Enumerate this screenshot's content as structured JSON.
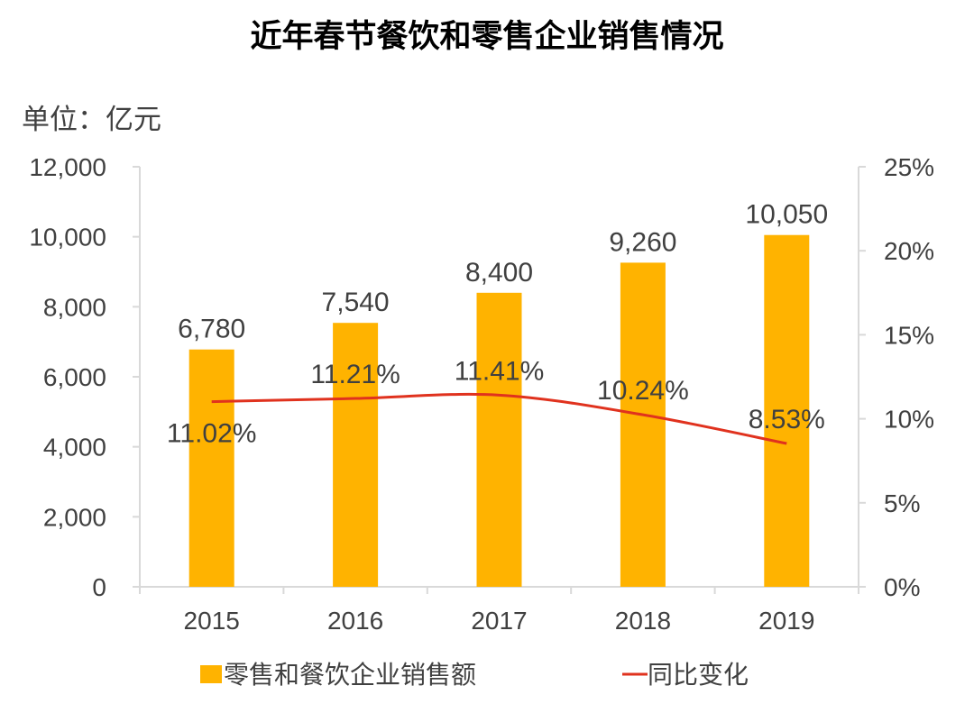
{
  "chart_data": {
    "type": "bar",
    "title": "近年春节餐饮和零售企业销售情况",
    "unit_label": "单位：亿元",
    "categories": [
      "2015",
      "2016",
      "2017",
      "2018",
      "2019"
    ],
    "series": [
      {
        "name": "零售和餐饮企业销售额",
        "type": "bar",
        "axis": "left",
        "color": "#FFB300",
        "values": [
          6780,
          7540,
          8400,
          9260,
          10050
        ],
        "labels": [
          "6,780",
          "7,540",
          "8,400",
          "9,260",
          "10,050"
        ]
      },
      {
        "name": "同比变化",
        "type": "line",
        "axis": "right",
        "color": "#E0321E",
        "values": [
          11.02,
          11.21,
          11.41,
          10.24,
          8.53
        ],
        "labels": [
          "11.02%",
          "11.21%",
          "11.41%",
          "10.24%",
          "8.53%"
        ]
      }
    ],
    "y_left": {
      "ylim": [
        0,
        12000
      ],
      "ticks": [
        0,
        2000,
        4000,
        6000,
        8000,
        10000,
        12000
      ],
      "tick_labels": [
        "0",
        "2,000",
        "4,000",
        "6,000",
        "8,000",
        "10,000",
        "12,000"
      ]
    },
    "y_right": {
      "ylim": [
        0,
        25
      ],
      "ticks": [
        0,
        5,
        10,
        15,
        20,
        25
      ],
      "tick_labels": [
        "0%",
        "5%",
        "10%",
        "15%",
        "20%",
        "25%"
      ]
    },
    "grid": false,
    "legend": "bottom"
  }
}
